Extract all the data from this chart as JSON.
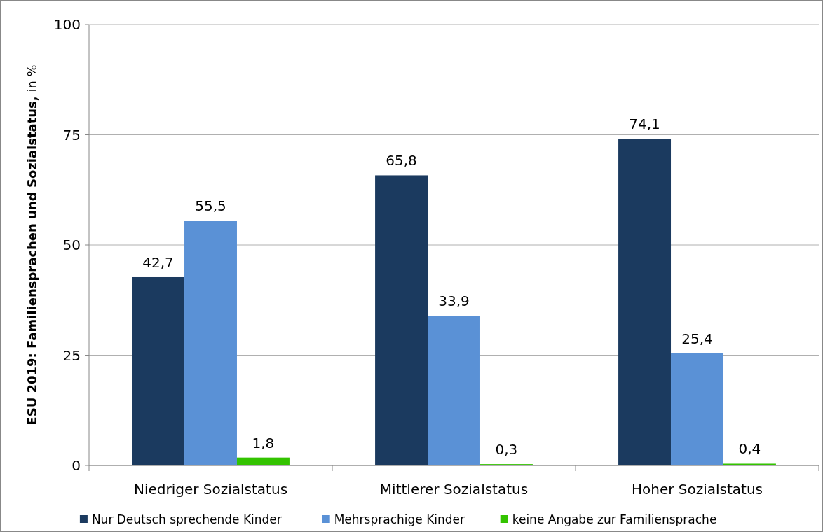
{
  "chart_data": {
    "type": "bar",
    "ylabel": "ESU 2019: Familiensprachen und Sozialstatus, in %",
    "categories": [
      "Niedriger Sozialstatus",
      "Mittlerer Sozialstatus",
      "Hoher Sozialstatus"
    ],
    "series": [
      {
        "name": "Nur Deutsch sprechende Kinder",
        "color": "#1b3a5f",
        "values": [
          42.7,
          65.8,
          74.1
        ],
        "value_labels": [
          "42,7",
          "65,8",
          "74,1"
        ]
      },
      {
        "name": "Mehrsprachige Kinder",
        "color": "#5a91d6",
        "values": [
          55.5,
          33.9,
          25.4
        ],
        "value_labels": [
          "55,5",
          "33,9",
          "25,4"
        ]
      },
      {
        "name": "keine Angabe zur Familiensprache",
        "color": "#33c300",
        "values": [
          1.8,
          0.3,
          0.4
        ],
        "value_labels": [
          "1,8",
          "0,3",
          "0,4"
        ]
      }
    ],
    "ylim": [
      0,
      100
    ],
    "yticks": [
      0,
      25,
      50,
      75,
      100
    ],
    "grid": "y",
    "legend": "bottom"
  }
}
